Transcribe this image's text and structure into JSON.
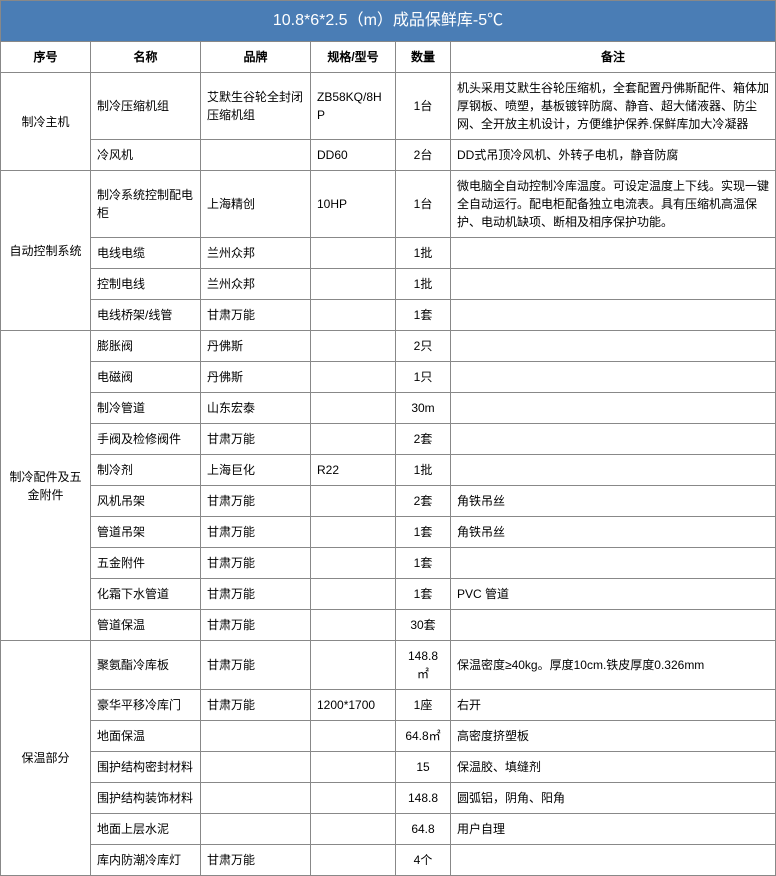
{
  "title": "10.8*6*2.5（m）成品保鲜库-5℃",
  "headers": [
    "序号",
    "名称",
    "品牌",
    "规格/型号",
    "数量",
    "备注"
  ],
  "colors": {
    "title_bg": "#4a7db5",
    "title_text": "#ffffff",
    "border": "#888888",
    "text": "#000000",
    "bg": "#ffffff"
  },
  "groups": [
    {
      "category": "制冷主机",
      "rows": [
        {
          "name": "制冷压缩机组",
          "brand": "艾默生谷轮全封闭压缩机组",
          "spec": "ZB58KQ/8HP",
          "qty": "1台",
          "remark": "机头采用艾默生谷轮压缩机，全套配置丹佛斯配件、箱体加厚钢板、喷塑，基板镀锌防腐、静音、超大储液器、防尘网、全开放主机设计，方便维护保养.保鲜库加大冷凝器"
        },
        {
          "name": "冷风机",
          "brand": "",
          "spec": "DD60",
          "qty": "2台",
          "remark": "DD式吊顶冷风机、外转子电机，静音防腐"
        }
      ]
    },
    {
      "category": "自动控制系统",
      "rows": [
        {
          "name": "制冷系统控制配电柜",
          "brand": "上海精创",
          "spec": "10HP",
          "qty": "1台",
          "remark": "微电脑全自动控制冷库温度。可设定温度上下线。实现一键全自动运行。配电柜配备独立电流表。具有压缩机高温保护、电动机缺项、断相及相序保护功能。"
        },
        {
          "name": "电线电缆",
          "brand": "兰州众邦",
          "spec": "",
          "qty": "1批",
          "remark": ""
        },
        {
          "name": "控制电线",
          "brand": "兰州众邦",
          "spec": "",
          "qty": "1批",
          "remark": ""
        },
        {
          "name": "电线桥架/线管",
          "brand": "甘肃万能",
          "spec": "",
          "qty": "1套",
          "remark": ""
        }
      ]
    },
    {
      "category": "制冷配件及五金附件",
      "rows": [
        {
          "name": "膨胀阀",
          "brand": "丹佛斯",
          "spec": "",
          "qty": "2只",
          "remark": ""
        },
        {
          "name": "电磁阀",
          "brand": "丹佛斯",
          "spec": "",
          "qty": "1只",
          "remark": ""
        },
        {
          "name": "制冷管道",
          "brand": "山东宏泰",
          "spec": "",
          "qty": "30m",
          "remark": ""
        },
        {
          "name": "手阀及检修阀件",
          "brand": "甘肃万能",
          "spec": "",
          "qty": "2套",
          "remark": ""
        },
        {
          "name": "制冷剂",
          "brand": "上海巨化",
          "spec": "R22",
          "qty": "1批",
          "remark": ""
        },
        {
          "name": "风机吊架",
          "brand": "甘肃万能",
          "spec": "",
          "qty": "2套",
          "remark": "角铁吊丝"
        },
        {
          "name": "管道吊架",
          "brand": "甘肃万能",
          "spec": "",
          "qty": "1套",
          "remark": "角铁吊丝"
        },
        {
          "name": "五金附件",
          "brand": "甘肃万能",
          "spec": "",
          "qty": "1套",
          "remark": ""
        },
        {
          "name": "化霜下水管道",
          "brand": "甘肃万能",
          "spec": "",
          "qty": "1套",
          "remark": "PVC 管道"
        },
        {
          "name": "管道保温",
          "brand": "甘肃万能",
          "spec": "",
          "qty": "30套",
          "remark": ""
        }
      ]
    },
    {
      "category": "保温部分",
      "rows": [
        {
          "name": "聚氨酯冷库板",
          "brand": "甘肃万能",
          "spec": "",
          "qty": "148.8㎡",
          "remark": "保温密度≥40kg。厚度10cm.铁皮厚度0.326mm"
        },
        {
          "name": "豪华平移冷库门",
          "brand": "甘肃万能",
          "spec": "1200*1700",
          "qty": "1座",
          "remark": "右开"
        },
        {
          "name": "地面保温",
          "brand": "",
          "spec": "",
          "qty": "64.8㎡",
          "remark": "高密度挤塑板"
        },
        {
          "name": "围护结构密封材料",
          "brand": "",
          "spec": "",
          "qty": "15",
          "remark": "保温胶、填缝剂"
        },
        {
          "name": "围护结构装饰材料",
          "brand": "",
          "spec": "",
          "qty": "148.8",
          "remark": "圆弧铝，阴角、阳角"
        },
        {
          "name": "地面上层水泥",
          "brand": "",
          "spec": "",
          "qty": "64.8",
          "remark": "用户自理"
        },
        {
          "name": "库内防潮冷库灯",
          "brand": "甘肃万能",
          "spec": "",
          "qty": "4个",
          "remark": ""
        }
      ]
    }
  ]
}
